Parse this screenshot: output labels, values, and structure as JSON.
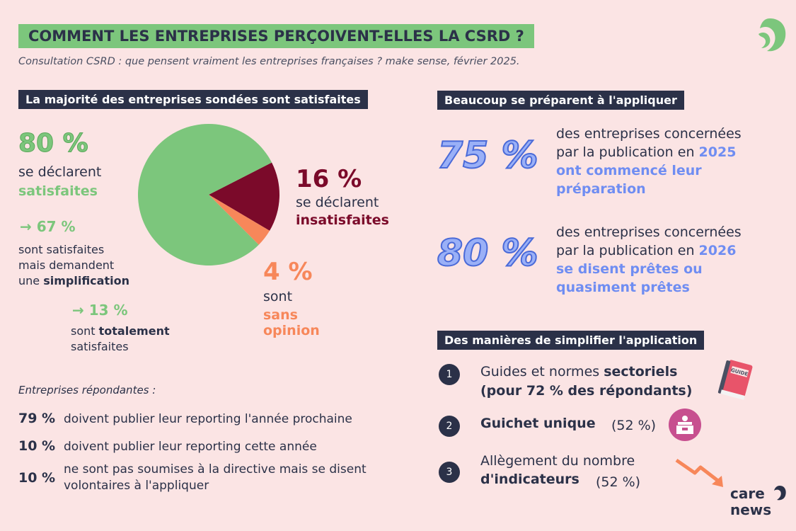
{
  "header": {
    "title": "COMMENT LES ENTREPRISES PERÇOIVENT-ELLES LA CSRD ?",
    "subtitle": "Consultation CSRD : que pensent vraiment les entreprises françaises ? make sense, février 2025."
  },
  "colors": {
    "green": "#7cc67c",
    "dark_red": "#7b0a2a",
    "orange": "#f7875a",
    "navy": "#2b3148",
    "blue": "#6f8df2",
    "pink_bg": "#fbe4e4"
  },
  "left": {
    "section_title": "La majorité des entreprises sondées sont satisfaites",
    "satisfied": {
      "pct": "80 %",
      "line1": "se déclarent",
      "line2": "satisfaites"
    },
    "sub67": {
      "pct": "→ 67 %",
      "line1": "sont satisfaites",
      "line2": "mais demandent",
      "line3a": "une ",
      "line3b": "simplification"
    },
    "sub13": {
      "pct": "→ 13 %",
      "line1a": "sont ",
      "line1b": "totalement",
      "line2": "satisfaites"
    },
    "unsatisfied": {
      "pct": "16 %",
      "line1": "se déclarent",
      "line2": "insatisfaites"
    },
    "no_opinion": {
      "pct": "4 %",
      "line1": "sont",
      "line2": "sans",
      "line3": "opinion"
    },
    "respondents_title": "Entreprises répondantes :",
    "respondents": [
      {
        "pct": "79 %",
        "text": "doivent publier leur reporting l'année prochaine"
      },
      {
        "pct": "10 %",
        "text": "doivent publier leur reporting cette année"
      },
      {
        "pct": "10 %",
        "text1": "ne sont pas soumises à la directive mais se disent",
        "text2": "volontaires à l'appliquer"
      }
    ]
  },
  "chart_data": {
    "type": "pie",
    "categories": [
      "satisfaites",
      "insatisfaites",
      "sans opinion"
    ],
    "values": [
      80,
      16,
      4
    ],
    "colors": [
      "#7cc67c",
      "#7b0a2a",
      "#f7875a"
    ]
  },
  "right": {
    "section_title": "Beaucoup se préparent à l'appliquer",
    "stat1": {
      "pct": "75 %",
      "line1": "des entreprises concernées",
      "line2a": "par la publication en ",
      "line2b": "2025",
      "line3": "ont commencé leur",
      "line4": "préparation"
    },
    "stat2": {
      "pct": "80 %",
      "line1": "des entreprises concernées",
      "line2a": "par la publication en ",
      "line2b": "2026",
      "line3": "se disent prêtes ou",
      "line4": "quasiment prêtes"
    },
    "simplify_title": "Des manières de simplifier l'application",
    "items": [
      {
        "num": "1",
        "line1a": "Guides et normes ",
        "line1b": "sectoriels",
        "line2": "(pour 72 % des répondants)",
        "icon": "guide-book-icon",
        "icon_text": "GUIDE"
      },
      {
        "num": "2",
        "bold": "Guichet unique",
        "rest": "(52 %)",
        "icon": "counter-desk-icon"
      },
      {
        "num": "3",
        "line1": "Allègement du nombre",
        "line2b": "d'indicateurs",
        "rest": "(52 %)",
        "icon": "down-arrow-icon"
      }
    ]
  },
  "brand": {
    "line1": "care",
    "line2": "news"
  }
}
